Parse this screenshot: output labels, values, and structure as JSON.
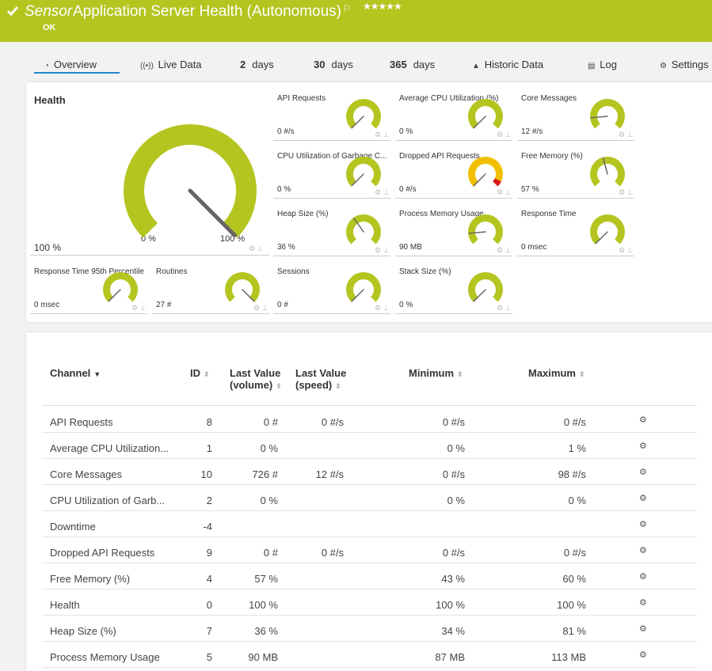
{
  "header": {
    "prefix": "Sensor",
    "title": "Application Server Health (Autonomous)",
    "status": "OK"
  },
  "tabs": [
    {
      "label": "Overview"
    },
    {
      "label": "Live Data"
    },
    {
      "number": "2",
      "label": "days"
    },
    {
      "number": "30",
      "label": "days"
    },
    {
      "number": "365",
      "label": "days"
    },
    {
      "label": "Historic Data"
    },
    {
      "label": "Log"
    },
    {
      "label": "Settings"
    }
  ],
  "health": {
    "title": "Health",
    "value": "100 %",
    "min_label": "0 %",
    "max_label": "100 %"
  },
  "gauges": [
    {
      "title": "API Requests",
      "value": "0 #/s"
    },
    {
      "title": "Average CPU Utilization (%)",
      "value": "0 %"
    },
    {
      "title": "Core Messages",
      "value": "12 #/s"
    },
    {
      "title": "CPU Utilization of Garbage C...",
      "value": "0 %"
    },
    {
      "title": "Dropped API Requests",
      "value": "0 #/s"
    },
    {
      "title": "Free Memory (%)",
      "value": "57 %"
    },
    {
      "title": "Heap Size (%)",
      "value": "36 %"
    },
    {
      "title": "Process Memory Usage",
      "value": "90 MB"
    },
    {
      "title": "Response Time",
      "value": "0 msec"
    },
    {
      "title": "Response Time 95th Percentile",
      "value": "0 msec"
    },
    {
      "title": "Routines",
      "value": "27 #"
    },
    {
      "title": "Sessions",
      "value": "0 #"
    },
    {
      "title": "Stack Size (%)",
      "value": "0 %"
    }
  ],
  "table": {
    "columns": [
      "Channel",
      "ID",
      "Last Value (volume)",
      "Last Value (speed)",
      "Minimum",
      "Maximum"
    ],
    "rows": [
      [
        "API Requests",
        8,
        "0 #",
        "0 #/s",
        "0 #/s",
        "0 #/s"
      ],
      [
        "Average CPU Utilization...",
        1,
        "0 %",
        null,
        "0 %",
        "1 %"
      ],
      [
        "Core Messages",
        10,
        "726 #",
        "12 #/s",
        "0 #/s",
        "98 #/s"
      ],
      [
        "CPU Utilization of Garb...",
        2,
        "0 %",
        null,
        "0 %",
        "0 %"
      ],
      [
        "Downtime",
        -4,
        null,
        null,
        null,
        null
      ],
      [
        "Dropped API Requests",
        9,
        "0 #",
        "0 #/s",
        "0 #/s",
        "0 #/s"
      ],
      [
        "Free Memory (%)",
        4,
        "57 %",
        null,
        "43 %",
        "60 %"
      ],
      [
        "Health",
        0,
        "100 %",
        null,
        "100 %",
        "100 %"
      ],
      [
        "Heap Size (%)",
        7,
        "36 %",
        null,
        "34 %",
        "81 %"
      ],
      [
        "Process Memory Usage",
        5,
        "90 MB",
        null,
        "87 MB",
        "113 MB"
      ]
    ]
  }
}
